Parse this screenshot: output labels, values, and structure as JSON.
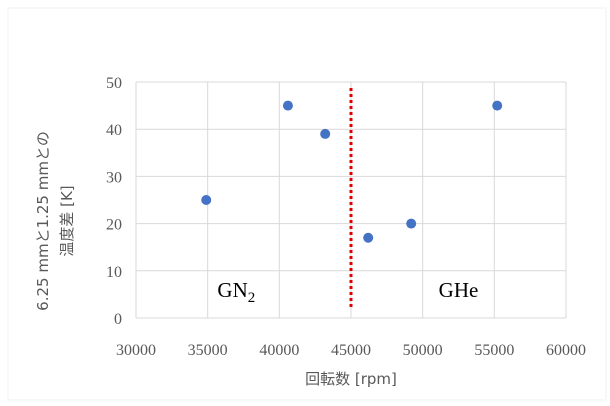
{
  "chart_data": {
    "type": "scatter",
    "title": "",
    "xlabel": "回転数 [rpm]",
    "ylabel_line1": "6.25 mmと1.25 mmとの",
    "ylabel_line2": "温度差 [K]",
    "xlim": [
      30000,
      60000
    ],
    "ylim": [
      0,
      50
    ],
    "x_ticks": [
      30000,
      35000,
      40000,
      45000,
      50000,
      55000,
      60000
    ],
    "y_ticks": [
      0,
      10,
      20,
      30,
      40,
      50
    ],
    "grid": true,
    "legend": "none",
    "series": [
      {
        "color": "#4472c4",
        "points": [
          {
            "x": 34900,
            "y": 25
          },
          {
            "x": 40600,
            "y": 45
          },
          {
            "x": 43200,
            "y": 39
          },
          {
            "x": 46200,
            "y": 17
          },
          {
            "x": 49200,
            "y": 20
          },
          {
            "x": 55200,
            "y": 45
          }
        ]
      }
    ],
    "divider": {
      "x": 45000,
      "color": "#e00000",
      "style": "dotted"
    },
    "annotations": [
      {
        "text": "GN",
        "subscript": "2",
        "x": 37000,
        "y": 4.5
      },
      {
        "text": "GHe",
        "subscript": "",
        "x": 52500,
        "y": 4.5
      }
    ]
  }
}
